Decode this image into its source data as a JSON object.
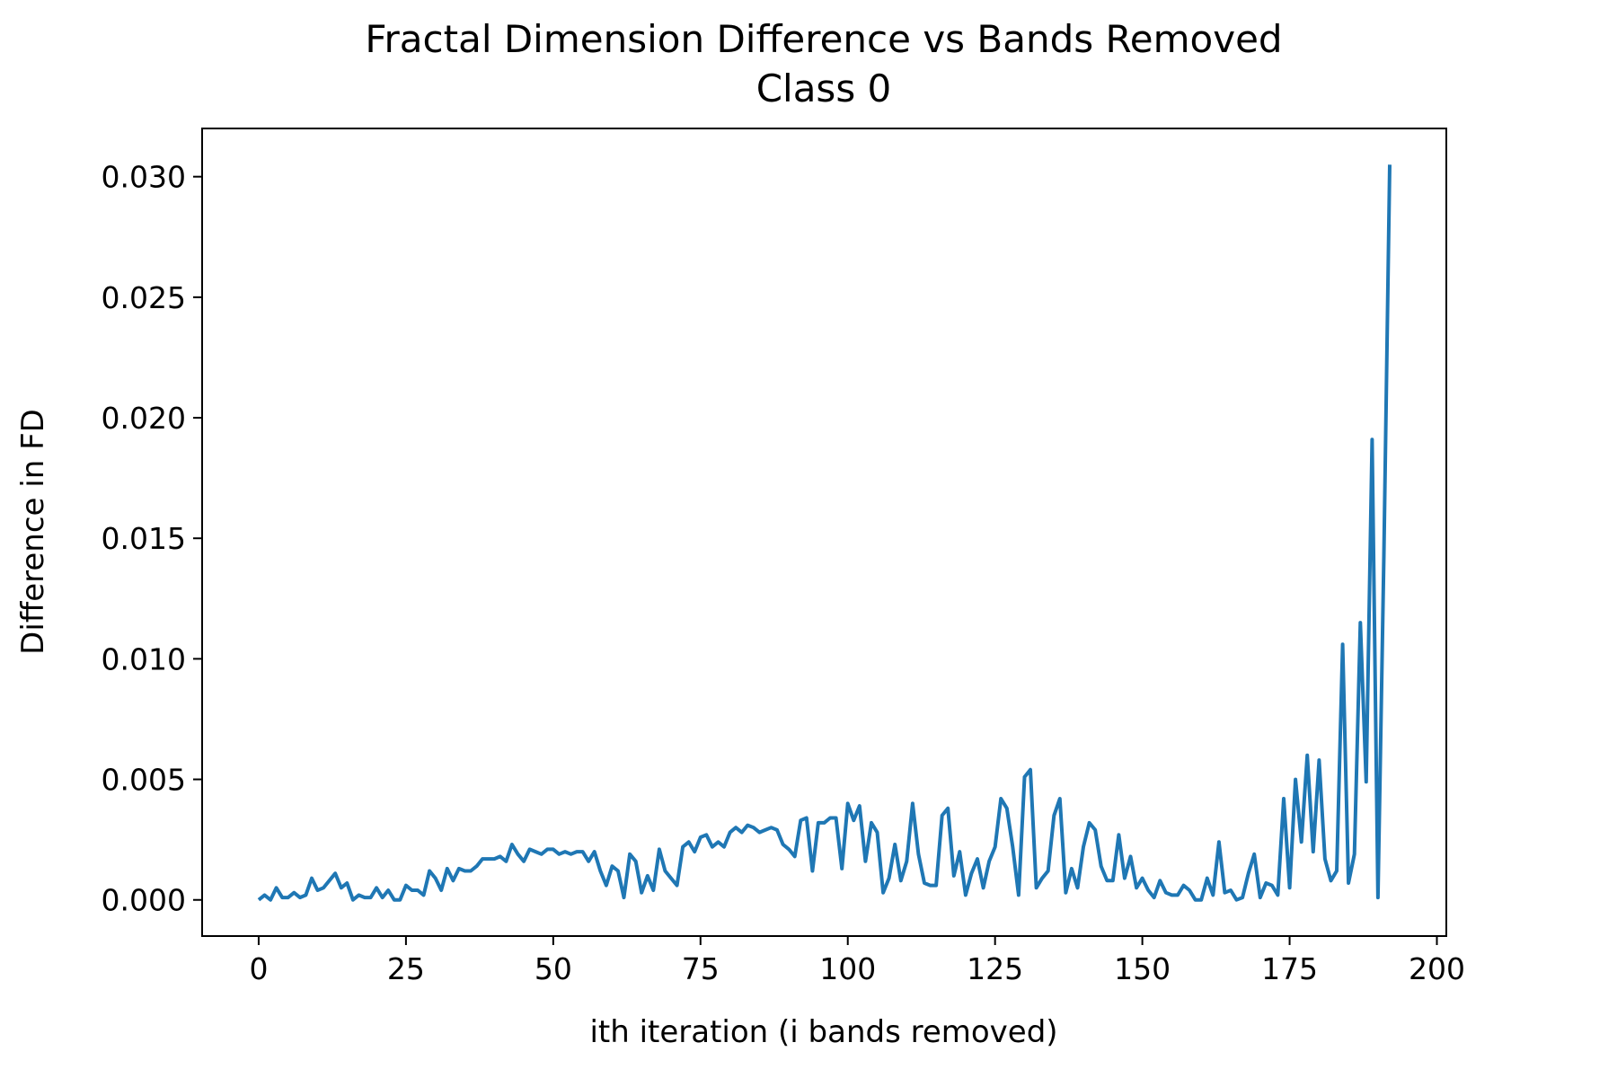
{
  "chart_data": {
    "type": "line",
    "title": "Fractal Dimension Difference vs Bands Removed",
    "subtitle": "Class 0",
    "xlabel": "ith iteration (i bands removed)",
    "ylabel": "Difference in FD",
    "xlim": [
      -9.6,
      201.6
    ],
    "ylim": [
      -0.0015,
      0.032
    ],
    "xticks": [
      0,
      25,
      50,
      75,
      100,
      125,
      150,
      175,
      200
    ],
    "xtick_labels": [
      "0",
      "25",
      "50",
      "75",
      "100",
      "125",
      "150",
      "175",
      "200"
    ],
    "yticks": [
      0.0,
      0.005,
      0.01,
      0.015,
      0.02,
      0.025,
      0.03
    ],
    "ytick_labels": [
      "0.000",
      "0.005",
      "0.010",
      "0.015",
      "0.020",
      "0.025",
      "0.030"
    ],
    "grid": false,
    "series": [
      {
        "color": "#1f77b4",
        "x": [
          0,
          1,
          2,
          3,
          4,
          5,
          6,
          7,
          8,
          9,
          10,
          11,
          12,
          13,
          14,
          15,
          16,
          17,
          18,
          19,
          20,
          21,
          22,
          23,
          24,
          25,
          26,
          27,
          28,
          29,
          30,
          31,
          32,
          33,
          34,
          35,
          36,
          37,
          38,
          39,
          40,
          41,
          42,
          43,
          44,
          45,
          46,
          47,
          48,
          49,
          50,
          51,
          52,
          53,
          54,
          55,
          56,
          57,
          58,
          59,
          60,
          61,
          62,
          63,
          64,
          65,
          66,
          67,
          68,
          69,
          70,
          71,
          72,
          73,
          74,
          75,
          76,
          77,
          78,
          79,
          80,
          81,
          82,
          83,
          84,
          85,
          86,
          87,
          88,
          89,
          90,
          91,
          92,
          93,
          94,
          95,
          96,
          97,
          98,
          99,
          100,
          101,
          102,
          103,
          104,
          105,
          106,
          107,
          108,
          109,
          110,
          111,
          112,
          113,
          114,
          115,
          116,
          117,
          118,
          119,
          120,
          121,
          122,
          123,
          124,
          125,
          126,
          127,
          128,
          129,
          130,
          131,
          132,
          133,
          134,
          135,
          136,
          137,
          138,
          139,
          140,
          141,
          142,
          143,
          144,
          145,
          146,
          147,
          148,
          149,
          150,
          151,
          152,
          153,
          154,
          155,
          156,
          157,
          158,
          159,
          160,
          161,
          162,
          163,
          164,
          165,
          166,
          167,
          168,
          169,
          170,
          171,
          172,
          173,
          174,
          175,
          176,
          177,
          178,
          179,
          180,
          181,
          182,
          183,
          184,
          185,
          186,
          187,
          188,
          189,
          190,
          191,
          192
        ],
        "y": [
          0.0,
          0.0002,
          0.0,
          0.0005,
          0.0001,
          0.0001,
          0.0003,
          0.0001,
          0.0002,
          0.0009,
          0.0004,
          0.0005,
          0.0008,
          0.0011,
          0.0005,
          0.0007,
          0.0,
          0.0002,
          0.0001,
          0.0001,
          0.0005,
          0.0001,
          0.0004,
          0.0,
          0.0,
          0.0006,
          0.0004,
          0.0004,
          0.0002,
          0.0012,
          0.0009,
          0.0004,
          0.0013,
          0.0008,
          0.0013,
          0.0012,
          0.0012,
          0.0014,
          0.0017,
          0.0017,
          0.0017,
          0.0018,
          0.0016,
          0.0023,
          0.0019,
          0.0016,
          0.0021,
          0.002,
          0.0019,
          0.0021,
          0.0021,
          0.0019,
          0.002,
          0.0019,
          0.002,
          0.002,
          0.0016,
          0.002,
          0.0012,
          0.0006,
          0.0014,
          0.0012,
          0.0001,
          0.0019,
          0.0016,
          0.0003,
          0.001,
          0.0004,
          0.0021,
          0.0012,
          0.0009,
          0.0006,
          0.0022,
          0.0024,
          0.002,
          0.0026,
          0.0027,
          0.0022,
          0.0024,
          0.0022,
          0.0028,
          0.003,
          0.0028,
          0.0031,
          0.003,
          0.0028,
          0.0029,
          0.003,
          0.0029,
          0.0023,
          0.0021,
          0.0018,
          0.0033,
          0.0034,
          0.0012,
          0.0032,
          0.0032,
          0.0034,
          0.0034,
          0.0013,
          0.004,
          0.0033,
          0.0039,
          0.0016,
          0.0032,
          0.0028,
          0.0003,
          0.0009,
          0.0023,
          0.0008,
          0.0016,
          0.004,
          0.0019,
          0.0007,
          0.0006,
          0.0006,
          0.0035,
          0.0038,
          0.001,
          0.002,
          0.0002,
          0.0011,
          0.0017,
          0.0005,
          0.0016,
          0.0022,
          0.0042,
          0.0038,
          0.0022,
          0.0002,
          0.0051,
          0.0054,
          0.0005,
          0.0009,
          0.0012,
          0.0035,
          0.0042,
          0.0003,
          0.0013,
          0.0005,
          0.0022,
          0.0032,
          0.0029,
          0.0014,
          0.0008,
          0.0008,
          0.0027,
          0.0009,
          0.0018,
          0.0005,
          0.0009,
          0.0004,
          0.0001,
          0.0008,
          0.0003,
          0.0002,
          0.0002,
          0.0006,
          0.0004,
          0.0,
          0.0,
          0.0009,
          0.0002,
          0.0024,
          0.0003,
          0.0004,
          0.0,
          0.0001,
          0.0011,
          0.0019,
          0.0001,
          0.0007,
          0.0006,
          0.0002,
          0.0042,
          0.0005,
          0.005,
          0.0024,
          0.006,
          0.002,
          0.0058,
          0.0017,
          0.0008,
          0.0012,
          0.0106,
          0.0007,
          0.0019,
          0.0115,
          0.0049,
          0.0191,
          0.0001,
          0.0143,
          0.0305
        ]
      }
    ]
  }
}
